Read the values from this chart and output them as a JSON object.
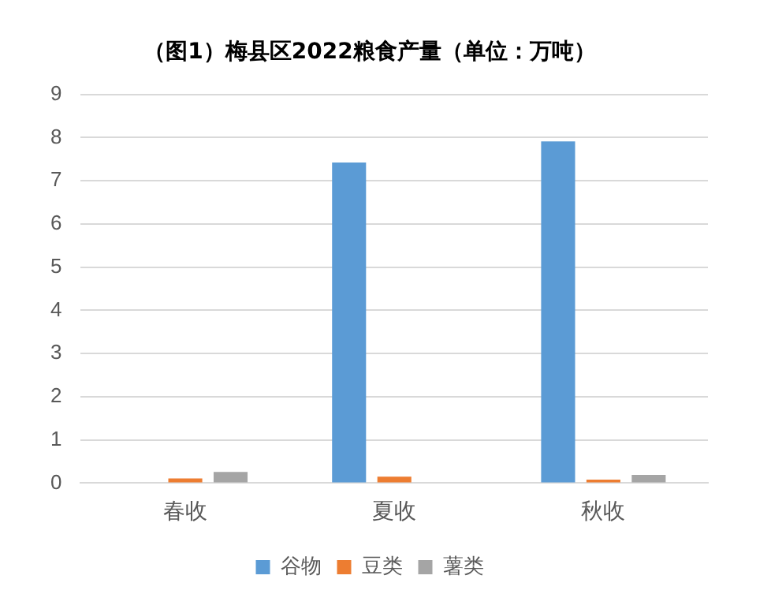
{
  "chart_data": {
    "type": "bar",
    "title": "（图1）梅县区2022粮食产量（单位：万吨）",
    "categories": [
      "春收",
      "夏收",
      "秋收"
    ],
    "series": [
      {
        "name": "谷物",
        "color": "#5b9bd5",
        "values": [
          null,
          7.42,
          7.91
        ]
      },
      {
        "name": "豆类",
        "color": "#ed7d31",
        "values": [
          0.11,
          0.15,
          0.08
        ]
      },
      {
        "name": "薯类",
        "color": "#a5a5a5",
        "values": [
          0.26,
          null,
          0.19
        ]
      }
    ],
    "ylim": [
      0,
      9
    ],
    "yticks": [
      0,
      1,
      2,
      3,
      4,
      5,
      6,
      7,
      8,
      9
    ],
    "grid": "y",
    "legend": "bottom"
  }
}
